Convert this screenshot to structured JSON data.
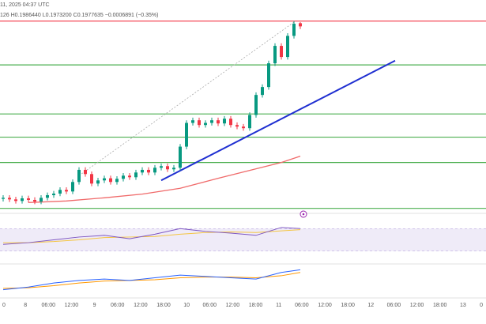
{
  "chart_data": {
    "type": "candlestick",
    "header": "11, 2025 04:37 UTC",
    "ohlc_text": "126 H0.1986440 L0.1973200 C0.1977635 −0.0006891 (−0.35%)",
    "x_labels": [
      "0",
      "8",
      "06:00",
      "12:00",
      "9",
      "06:00",
      "12:00",
      "18:00",
      "10",
      "06:00",
      "12:00",
      "18:00",
      "11",
      "06:00",
      "12:00",
      "18:00",
      "12",
      "06:00",
      "12:00",
      "18:00",
      "13",
      "0"
    ],
    "open": [
      0.1651,
      0.1653,
      0.165,
      0.1647,
      0.1652,
      0.1649,
      0.1646,
      0.1653,
      0.1658,
      0.1661,
      0.1668,
      0.1665,
      0.1683,
      0.1706,
      0.1698,
      0.168,
      0.1686,
      0.169,
      0.1683,
      0.1689,
      0.1695,
      0.1692,
      0.1701,
      0.1706,
      0.1701,
      0.171,
      0.1713,
      0.1707,
      0.171,
      0.175,
      0.1795,
      0.18,
      0.1791,
      0.1795,
      0.18,
      0.1794,
      0.1803,
      0.1791,
      0.1788,
      0.1785,
      0.181,
      0.1848,
      0.1863,
      0.1908,
      0.1941,
      0.192,
      0.196,
      0.1984
    ],
    "high": [
      0.1658,
      0.1658,
      0.1655,
      0.1657,
      0.1657,
      0.1654,
      0.1658,
      0.1663,
      0.1666,
      0.1673,
      0.1673,
      0.1688,
      0.1711,
      0.1711,
      0.1703,
      0.1691,
      0.1695,
      0.1695,
      0.1694,
      0.17,
      0.17,
      0.1706,
      0.1711,
      0.1711,
      0.1715,
      0.1718,
      0.1718,
      0.1715,
      0.1755,
      0.18,
      0.1805,
      0.1805,
      0.18,
      0.1805,
      0.1805,
      0.1808,
      0.1808,
      0.1796,
      0.1793,
      0.1815,
      0.1853,
      0.1868,
      0.1913,
      0.1946,
      0.1946,
      0.1965,
      0.1988,
      0.1986
    ],
    "low": [
      0.1646,
      0.1645,
      0.1642,
      0.1642,
      0.1644,
      0.1641,
      0.1641,
      0.1648,
      0.1653,
      0.1656,
      0.166,
      0.166,
      0.1678,
      0.1693,
      0.1675,
      0.1675,
      0.1681,
      0.1678,
      0.1678,
      0.1684,
      0.1687,
      0.1687,
      0.1696,
      0.1696,
      0.1696,
      0.1705,
      0.1702,
      0.1702,
      0.1705,
      0.1745,
      0.179,
      0.1786,
      0.1786,
      0.179,
      0.1789,
      0.1789,
      0.1786,
      0.1783,
      0.178,
      0.178,
      0.1805,
      0.1843,
      0.1858,
      0.1903,
      0.1915,
      0.1915,
      0.1955,
      0.1973
    ],
    "close": [
      0.1653,
      0.165,
      0.1647,
      0.1652,
      0.1649,
      0.1646,
      0.1653,
      0.1658,
      0.1661,
      0.1668,
      0.1665,
      0.1683,
      0.1706,
      0.1698,
      0.168,
      0.1686,
      0.169,
      0.1683,
      0.1689,
      0.1695,
      0.1692,
      0.1701,
      0.1706,
      0.1701,
      0.171,
      0.1713,
      0.1707,
      0.171,
      0.175,
      0.1795,
      0.18,
      0.1791,
      0.1795,
      0.18,
      0.1794,
      0.1803,
      0.1791,
      0.1788,
      0.1785,
      0.181,
      0.1848,
      0.1863,
      0.1908,
      0.1941,
      0.192,
      0.196,
      0.1983,
      0.1978
    ],
    "up_color": "#089981",
    "down_color": "#f23645",
    "ylim": [
      0.1631,
      0.2028
    ],
    "levels": [
      {
        "value": 0.1988,
        "color": "#f23645"
      },
      {
        "value": 0.1905,
        "color": "#4caf50"
      },
      {
        "value": 0.1812,
        "color": "#4caf50"
      },
      {
        "value": 0.1768,
        "color": "#4caf50"
      },
      {
        "value": 0.172,
        "color": "#4caf50"
      },
      {
        "value": 0.1633,
        "color": "#4caf50"
      }
    ],
    "trendline": {
      "x": [
        25,
        62
      ],
      "values": [
        0.1686,
        0.1913
      ],
      "color": "#1f2fd1"
    },
    "measure_line": {
      "x": [
        12,
        46
      ],
      "values": [
        0.1695,
        0.1986
      ],
      "color": "#aaaaaa"
    },
    "moving_average": {
      "x": [
        4,
        10,
        16,
        22,
        28,
        34,
        40,
        44,
        47
      ],
      "values": [
        0.1644,
        0.1647,
        0.1653,
        0.166,
        0.1671,
        0.169,
        0.1708,
        0.172,
        0.1732
      ],
      "color": "#f06a6a"
    },
    "rsi": {
      "x": [
        0,
        4,
        8,
        12,
        16,
        20,
        24,
        28,
        32,
        36,
        40,
        44,
        47
      ],
      "values": [
        42,
        45,
        50,
        55,
        58,
        52,
        60,
        70,
        65,
        62,
        58,
        72,
        70
      ],
      "signal": [
        45,
        45,
        47,
        50,
        54,
        55,
        56,
        60,
        63,
        64,
        63,
        66,
        68
      ],
      "color": "#7e57c2",
      "signal_color": "#f4c542",
      "ylim": [
        10,
        90
      ],
      "band": [
        30,
        70
      ]
    },
    "macd": {
      "x": [
        0,
        4,
        8,
        12,
        16,
        20,
        24,
        28,
        32,
        36,
        40,
        44,
        47
      ],
      "values": [
        -0.5,
        -0.3,
        0.0,
        0.2,
        0.3,
        0.2,
        0.4,
        0.6,
        0.5,
        0.4,
        0.3,
        0.8,
        1.0
      ],
      "signal": [
        -0.4,
        -0.35,
        -0.2,
        0.0,
        0.15,
        0.2,
        0.25,
        0.4,
        0.45,
        0.45,
        0.4,
        0.55,
        0.8
      ],
      "color": "#2962ff",
      "signal_color": "#ff9800",
      "ylim": [
        -1,
        1.2
      ]
    }
  }
}
